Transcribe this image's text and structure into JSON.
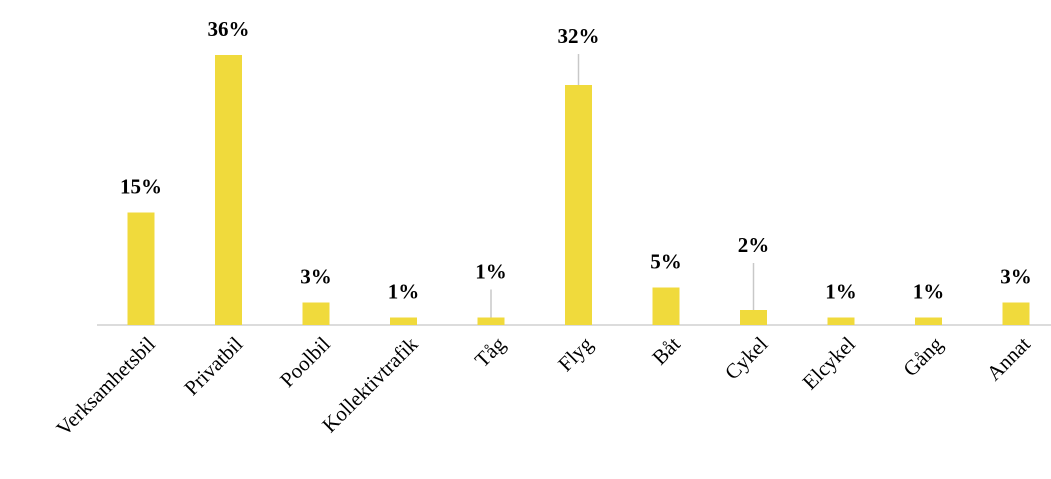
{
  "chart_data": {
    "type": "bar",
    "categories": [
      "Verksamhetsbil",
      "Privatbil",
      "Poolbil",
      "Kollektivtrafik",
      "Tåg",
      "Flyg",
      "Båt",
      "Cykel",
      "Elcykel",
      "Gång",
      "Annat"
    ],
    "values": [
      15,
      36,
      3,
      1,
      1,
      32,
      5,
      2,
      1,
      1,
      3
    ],
    "value_labels": [
      "15%",
      "36%",
      "3%",
      "1%",
      "1%",
      "32%",
      "5%",
      "2%",
      "1%",
      "1%",
      "3%"
    ],
    "color": "#f0da3c"
  }
}
